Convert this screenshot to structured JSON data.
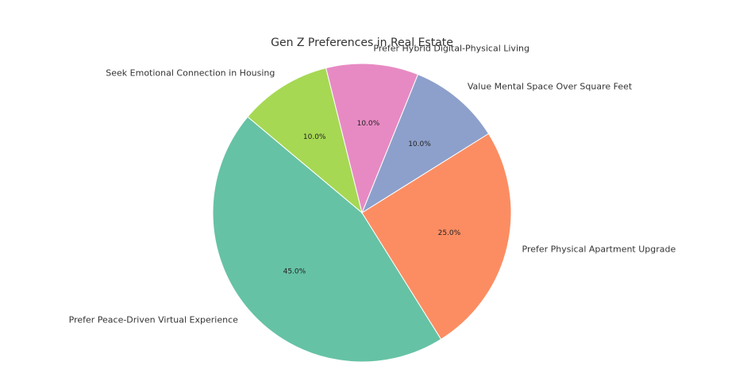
{
  "chart_data": {
    "type": "pie",
    "title": "Gen Z Preferences in Real Estate",
    "slices": [
      {
        "label": "Prefer Peace-Driven Virtual Experience",
        "value": 45,
        "pct_label": "45.0%",
        "color": "#66c2a5"
      },
      {
        "label": "Prefer Physical Apartment Upgrade",
        "value": 25,
        "pct_label": "25.0%",
        "color": "#fc8d62"
      },
      {
        "label": "Value Mental Space Over Square Feet",
        "value": 10,
        "pct_label": "10.0%",
        "color": "#8da0cb"
      },
      {
        "label": "Prefer Hybrid Digital-Physical Living",
        "value": 10,
        "pct_label": "10.0%",
        "color": "#e78ac3"
      },
      {
        "label": "Seek Emotional Connection in Housing",
        "value": 10,
        "pct_label": "10.0%",
        "color": "#a6d854"
      }
    ],
    "start_angle_deg": 140,
    "direction": "counterclockwise",
    "slice_edge_color": "#ffffff"
  }
}
